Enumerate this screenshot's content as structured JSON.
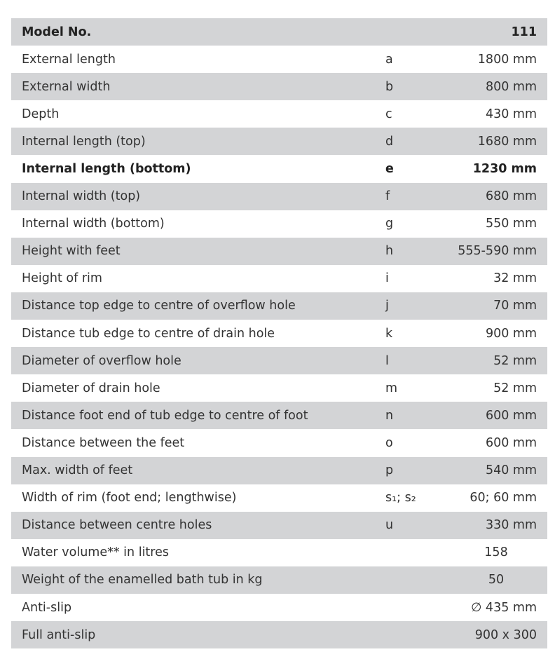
{
  "header": {
    "label": "Model No.",
    "value": "111"
  },
  "rows": [
    {
      "label": "External length",
      "letter": "a",
      "value": "1800 mm"
    },
    {
      "label": "External width",
      "letter": "b",
      "value": "800 mm"
    },
    {
      "label": "Depth",
      "letter": "c",
      "value": "430 mm"
    },
    {
      "label": "Internal length (top)",
      "letter": "d",
      "value": "1680 mm"
    },
    {
      "label": "Internal length (bottom)",
      "letter": "e",
      "value": "1230 mm",
      "bold": true
    },
    {
      "label": "Internal width (top)",
      "letter": "f",
      "value": "680 mm"
    },
    {
      "label": "Internal width (bottom)",
      "letter": "g",
      "value": "550 mm"
    },
    {
      "label": "Height with feet",
      "letter": "h",
      "value": "555-590 mm"
    },
    {
      "label": "Height of rim",
      "letter": "i",
      "value": "32 mm"
    },
    {
      "label": "Distance top edge to centre of overflow hole",
      "letter": "j",
      "value": "70 mm"
    },
    {
      "label": "Distance tub edge to centre of drain hole",
      "letter": "k",
      "value": "900 mm"
    },
    {
      "label": "Diameter of overflow hole",
      "letter": "l",
      "value": "52 mm"
    },
    {
      "label": "Diameter of drain hole",
      "letter": "m",
      "value": "52 mm"
    },
    {
      "label": "Distance foot end of tub edge to centre of foot",
      "letter": "n",
      "value": "600 mm"
    },
    {
      "label": "Distance between the feet",
      "letter": "o",
      "value": "600 mm"
    },
    {
      "label": "Max. width of feet",
      "letter": "p",
      "value": "540 mm"
    },
    {
      "label": "Width of rim (foot end; lengthwise)",
      "letter": "s₁; s₂",
      "value": "60; 60 mm"
    },
    {
      "label": "Distance between centre holes",
      "letter": "u",
      "value": "330 mm"
    },
    {
      "label": "Water volume** in litres",
      "letter": "",
      "value": "158",
      "center": true
    },
    {
      "label": "Weight of the enamelled bath tub in kg",
      "letter": "",
      "value": "50",
      "center": true
    },
    {
      "label": "Anti-slip",
      "letter": "",
      "value": "∅ 435 mm"
    },
    {
      "label": "Full anti-slip",
      "letter": "",
      "value": "900 x 300"
    }
  ],
  "colors": {
    "row_alt": "#d3d4d6",
    "text": "#333333"
  }
}
